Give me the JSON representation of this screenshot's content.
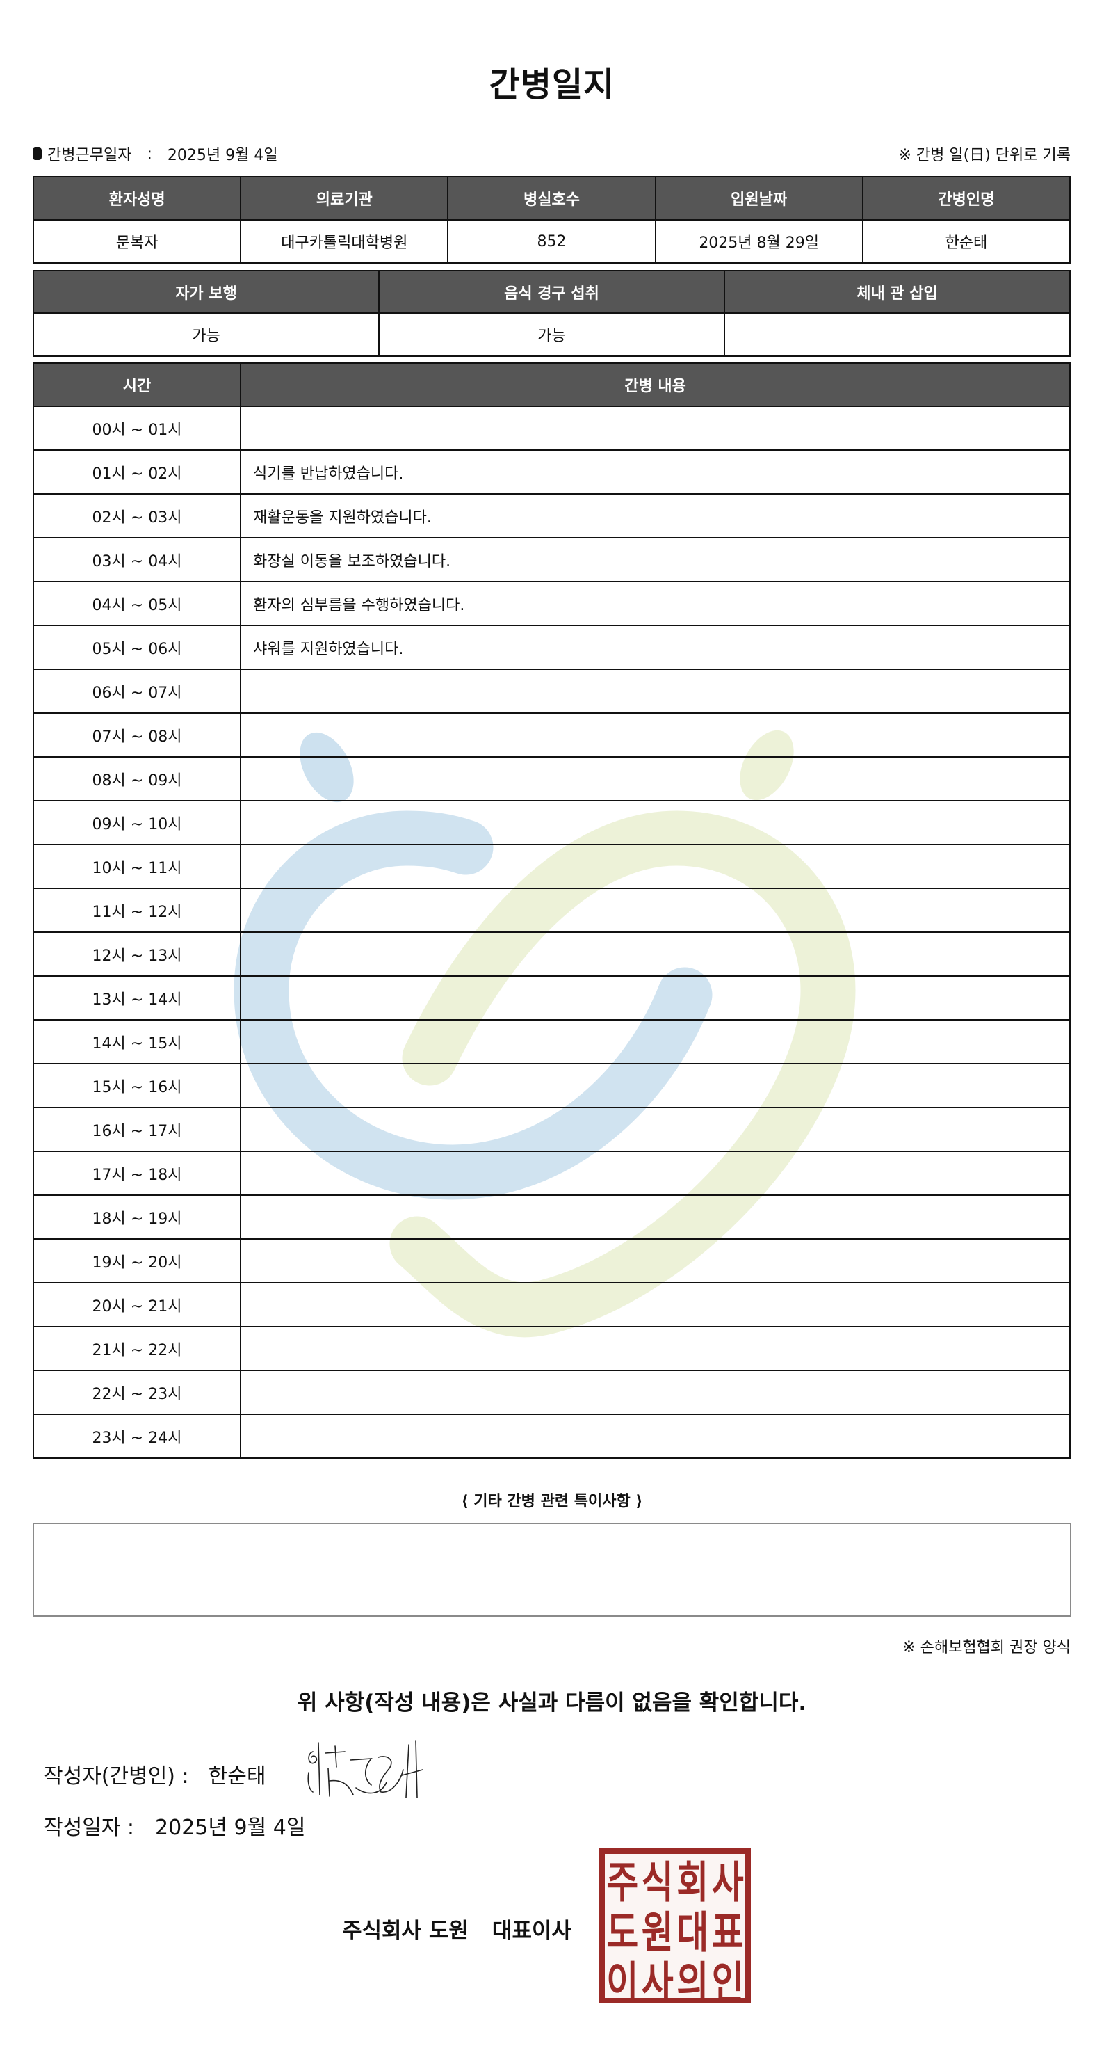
{
  "title": "간병일지",
  "info": {
    "work_date_label": "간병근무일자",
    "separator": ":",
    "work_date": "2025년 9월 4일",
    "note": "※ 간병 일(日) 단위로 기록"
  },
  "patient_table": {
    "headers": [
      "환자성명",
      "의료기관",
      "병실호수",
      "입원날짜",
      "간병인명"
    ],
    "values": [
      "문복자",
      "대구카톨릭대학병원",
      "852",
      "2025년 8월 29일",
      "한순태"
    ]
  },
  "status_table": {
    "headers": [
      "자가 보행",
      "음식 경구 섭취",
      "체내 관 삽입"
    ],
    "values": [
      "가능",
      "가능",
      ""
    ]
  },
  "log_table": {
    "headers": [
      "시간",
      "간병 내용"
    ],
    "rows": [
      {
        "time": "00시 ~ 01시",
        "content": ""
      },
      {
        "time": "01시 ~ 02시",
        "content": "식기를 반납하였습니다."
      },
      {
        "time": "02시 ~ 03시",
        "content": "재활운동을 지원하였습니다."
      },
      {
        "time": "03시 ~ 04시",
        "content": "화장실 이동을 보조하였습니다."
      },
      {
        "time": "04시 ~ 05시",
        "content": "환자의 심부름을 수행하였습니다."
      },
      {
        "time": "05시 ~ 06시",
        "content": "샤워를 지원하였습니다."
      },
      {
        "time": "06시 ~ 07시",
        "content": ""
      },
      {
        "time": "07시 ~ 08시",
        "content": ""
      },
      {
        "time": "08시 ~ 09시",
        "content": ""
      },
      {
        "time": "09시 ~ 10시",
        "content": ""
      },
      {
        "time": "10시 ~ 11시",
        "content": ""
      },
      {
        "time": "11시 ~ 12시",
        "content": ""
      },
      {
        "time": "12시 ~ 13시",
        "content": ""
      },
      {
        "time": "13시 ~ 14시",
        "content": ""
      },
      {
        "time": "14시 ~ 15시",
        "content": ""
      },
      {
        "time": "15시 ~ 16시",
        "content": ""
      },
      {
        "time": "16시 ~ 17시",
        "content": ""
      },
      {
        "time": "17시 ~ 18시",
        "content": ""
      },
      {
        "time": "18시 ~ 19시",
        "content": ""
      },
      {
        "time": "19시 ~ 20시",
        "content": ""
      },
      {
        "time": "20시 ~ 21시",
        "content": ""
      },
      {
        "time": "21시 ~ 22시",
        "content": ""
      },
      {
        "time": "22시 ~ 23시",
        "content": ""
      },
      {
        "time": "23시 ~ 24시",
        "content": ""
      }
    ]
  },
  "notes": {
    "label": "⟨ 기타 간병 관련 특이사항 ⟩",
    "value": ""
  },
  "form_note": "※ 손해보험협회 권장 양식",
  "confirmation": "위 사항(작성 내용)은 사실과 다름이 없음을 확인합니다.",
  "writer": {
    "label": "작성자(간병인) :",
    "name": "한순태"
  },
  "written_date": {
    "label": "작성일자 :",
    "value": "2025년 9월 4일"
  },
  "company": {
    "name": "주식회사 도원",
    "title": "대표이사"
  },
  "seal": {
    "text": [
      "주",
      "식",
      "회",
      "사",
      "도",
      "원",
      "대",
      "표",
      "이",
      "사",
      "의",
      "인"
    ],
    "color": "#9b2a27"
  },
  "colors": {
    "header_bg": "#565656",
    "watermark_blue": "#cde1ef",
    "watermark_green": "#edf2d8"
  }
}
